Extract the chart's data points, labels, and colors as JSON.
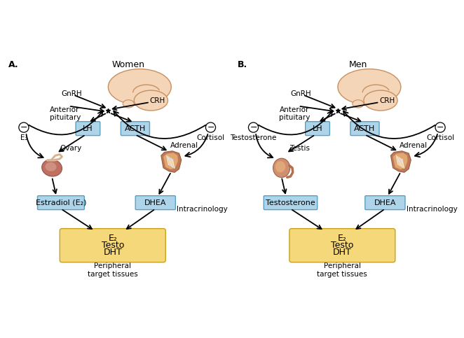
{
  "fig_width": 6.62,
  "fig_height": 4.83,
  "bg_color": "#ffffff",
  "panel_A": {
    "label": "A.",
    "title": "Women",
    "feedback_left_label": "E₂",
    "feedback_right_label": "Cortisol",
    "hormone_left": "LH",
    "hormone_right": "ACTH",
    "organ_left_label": "Ovary",
    "organ_right_label": "Adrenal",
    "box_left_label": "Estradiol (E₂)",
    "box_right_label": "DHEA",
    "intracrinology_label": "Intracrinology",
    "bottom_box_lines": [
      "E₂",
      "Testo",
      "DHT"
    ],
    "bottom_label": "Peripheral\ntarget tissues",
    "gnrh_label": "GnRH",
    "crh_label": "CRH",
    "ant_pit_label": "Anterior\npituitary"
  },
  "panel_B": {
    "label": "B.",
    "title": "Men",
    "feedback_left_label": "Testosterone",
    "feedback_right_label": "Cortisol",
    "hormone_left": "LH",
    "hormone_right": "ACTH",
    "organ_left_label": "Testis",
    "organ_right_label": "Adrenal",
    "box_left_label": "Testosterone",
    "box_right_label": "DHEA",
    "intracrinology_label": "Intracrinology",
    "bottom_box_lines": [
      "E₂",
      "Testo",
      "DHT"
    ],
    "bottom_label": "Peripheral\ntarget tissues",
    "gnrh_label": "GnRH",
    "crh_label": "CRH",
    "ant_pit_label": "Anterior\npituitary"
  },
  "box_facecolor": "#aed4ea",
  "box_edgecolor": "#5a9fc0",
  "bottom_box_facecolor": "#f5d87a",
  "bottom_box_edgecolor": "#c8a020",
  "brain_color": "#f5d5b8",
  "brain_edge_color": "#c89060",
  "brain_inner_color": "#e8b888"
}
